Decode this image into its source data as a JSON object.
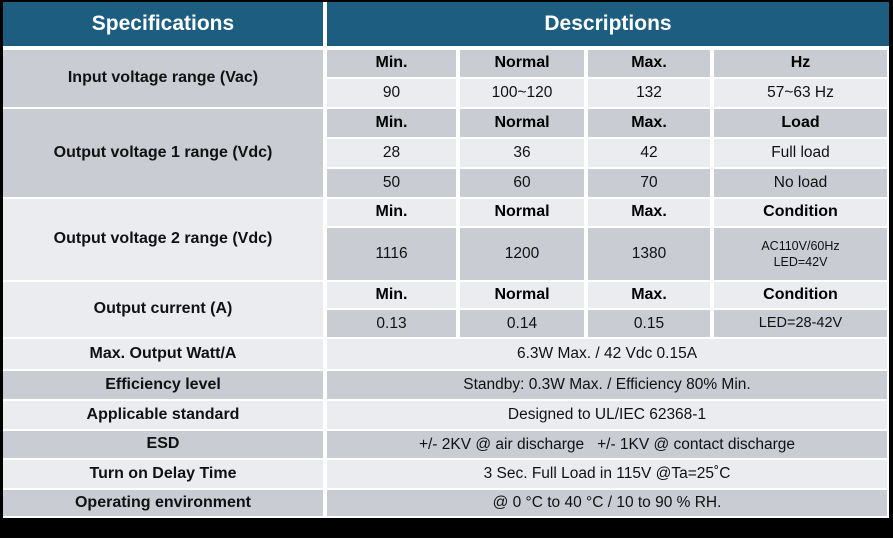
{
  "table": {
    "header": {
      "specifications": "Specifications",
      "descriptions": "Descriptions"
    },
    "colors": {
      "header_teal": "#1d5d7f",
      "row_grey": "#c9ccd3",
      "row_light": "#eaecef",
      "frame_black": "#000000",
      "header_text": "#ffffff",
      "body_text": "#111111"
    },
    "sections": [
      {
        "label": "Input voltage range (Vac)",
        "columns": [
          "Min.",
          "Normal",
          "Max.",
          "Hz"
        ],
        "rows": [
          [
            "90",
            "100~120",
            "132",
            "57~63 Hz"
          ]
        ]
      },
      {
        "label": "Output voltage 1 range (Vdc)",
        "columns": [
          "Min.",
          "Normal",
          "Max.",
          "Load"
        ],
        "rows": [
          [
            "28",
            "36",
            "42",
            "Full load"
          ],
          [
            "50",
            "60",
            "70",
            "No load"
          ]
        ]
      },
      {
        "label": "Output voltage 2 range (Vdc)",
        "columns": [
          "Min.",
          "Normal",
          "Max.",
          "Condition"
        ],
        "rows": [
          [
            "1116",
            "1200",
            "1380",
            "AC110V/60Hz\nLED=42V"
          ]
        ]
      },
      {
        "label": "Output current (A)",
        "columns": [
          "Min.",
          "Normal",
          "Max.",
          "Condition"
        ],
        "rows": [
          [
            "0.13",
            "0.14",
            "0.15",
            "LED=28-42V"
          ]
        ]
      }
    ],
    "simple_rows": [
      {
        "label": "Max. Output Watt/A",
        "value": "6.3W Max. / 42 Vdc 0.15A"
      },
      {
        "label": "Efficiency level",
        "value": "Standby: 0.3W Max. / Efficiency 80% Min."
      },
      {
        "label": "Applicable standard",
        "value": "Designed to UL/IEC 62368-1"
      },
      {
        "label": "ESD",
        "value": "+/- 2KV @ air discharge   +/- 1KV @ contact discharge"
      },
      {
        "label": "Turn on Delay Time",
        "value": "3 Sec. Full Load in 115V @Ta=25˚C"
      },
      {
        "label": "Operating environment",
        "value": "@ 0 °C to 40 °C / 10 to 90 % RH."
      }
    ]
  }
}
